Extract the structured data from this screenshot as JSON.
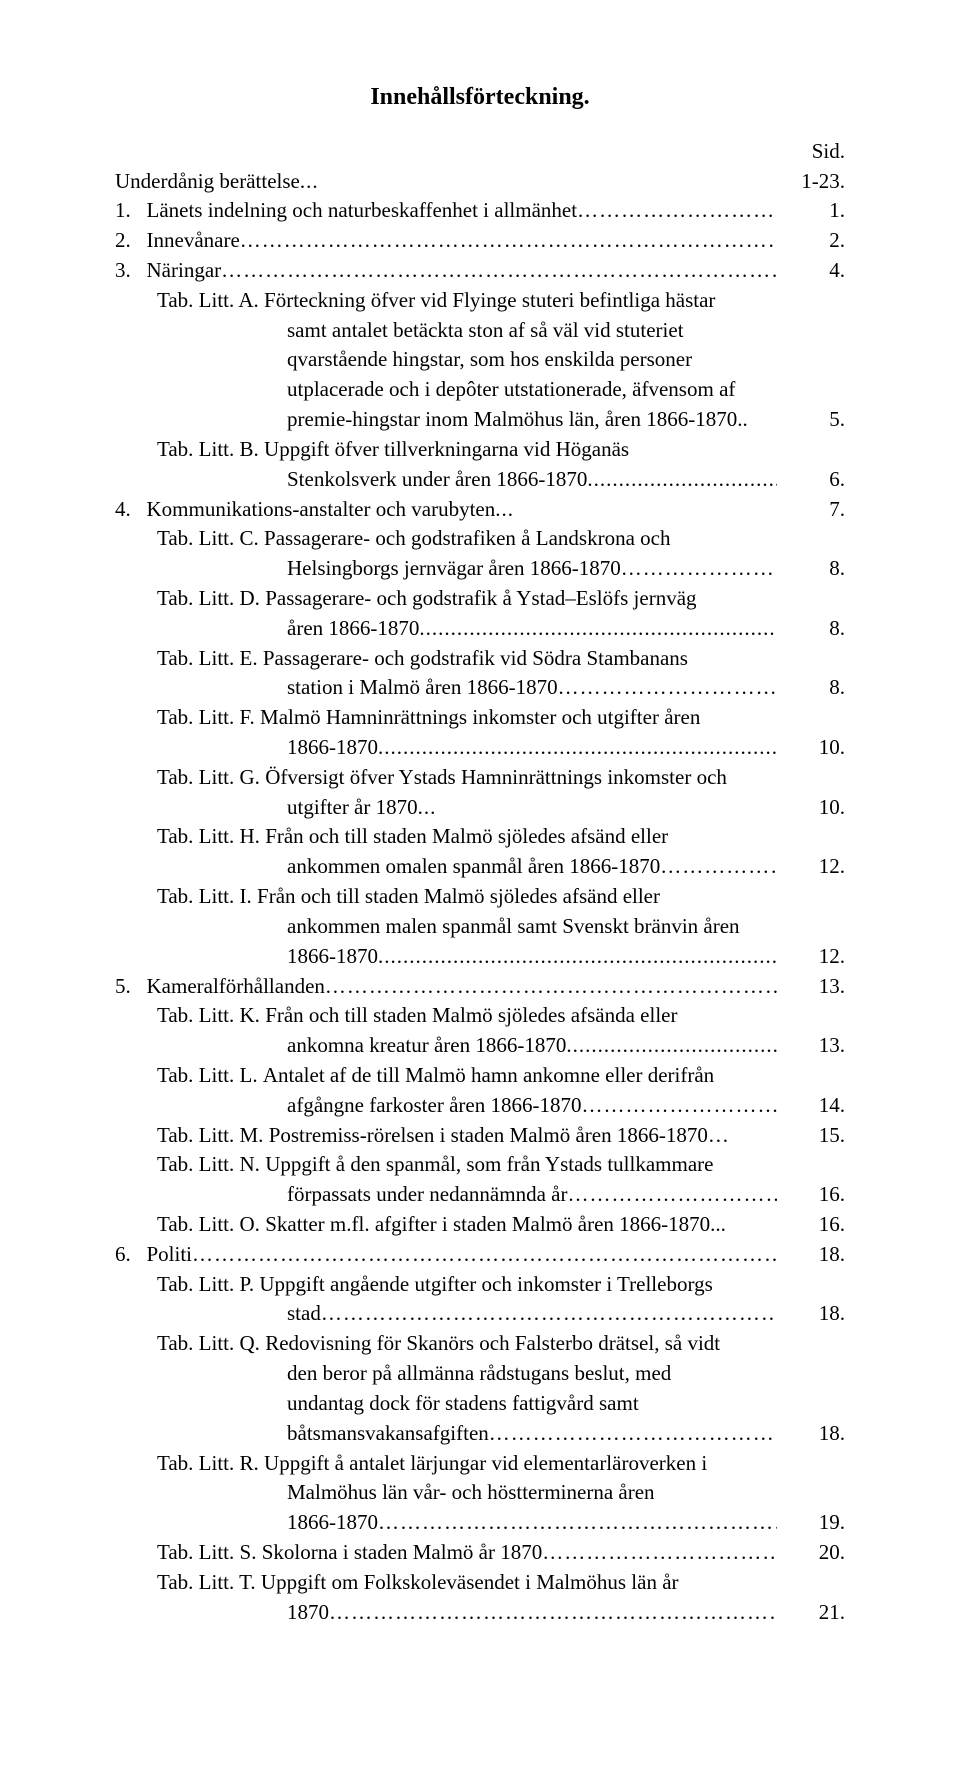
{
  "title": "Innehållsförteckning.",
  "sidLabel": "Sid.",
  "entries": [
    {
      "indent": 0,
      "leadA": "",
      "leadB": "Underdånig berättelse",
      "text": "",
      "leader": "ell",
      "page": "1-23."
    },
    {
      "indent": 0,
      "leadA": "1.",
      "leadB": "",
      "text": "Länets indelning och naturbeskaffenhet i allmänhet",
      "leader": "dots",
      "page": "1."
    },
    {
      "indent": 0,
      "leadA": "2.",
      "leadB": "",
      "text": "Innevånare",
      "leader": "dots",
      "page": "2."
    },
    {
      "indent": 0,
      "leadA": "3.",
      "leadB": "",
      "text": "Näringar",
      "leader": "dots",
      "page": "4."
    },
    {
      "indent": 1,
      "leadA": "Tab. Litt. A.",
      "leadB": "",
      "text": "Förteckning öfver vid Flyinge stuteri befintliga hästar",
      "leader": "",
      "page": ""
    },
    {
      "indent": 2,
      "leadA": "",
      "leadB": "",
      "text": "samt antalet betäckta ston af så väl vid stuteriet",
      "leader": "",
      "page": ""
    },
    {
      "indent": 2,
      "leadA": "",
      "leadB": "",
      "text": "qvarstående hingstar, som hos enskilda personer",
      "leader": "",
      "page": ""
    },
    {
      "indent": 2,
      "leadA": "",
      "leadB": "",
      "text": "utplacerade och i depôter utstationerade, äfvensom af",
      "leader": "",
      "page": ""
    },
    {
      "indent": 2,
      "leadA": "",
      "leadB": "",
      "text": "premie-hingstar inom Malmöhus län, åren 1866-1870..",
      "leader": "",
      "page": "5."
    },
    {
      "indent": 1,
      "leadA": "Tab. Litt. B.",
      "leadB": "",
      "text": "Uppgift öfver tillverkningarna vid Höganäs",
      "leader": "",
      "page": ""
    },
    {
      "indent": 2,
      "leadA": "",
      "leadB": "",
      "text": "Stenkolsverk under åren 1866-1870",
      "leader": "per",
      "page": "6."
    },
    {
      "indent": 0,
      "leadA": "4.",
      "leadB": "",
      "text": "Kommunikations-anstalter och varubyten",
      "leader": "ell",
      "page": "7."
    },
    {
      "indent": 1,
      "leadA": "Tab. Litt. C.",
      "leadB": "",
      "text": "Passagerare- och godstrafiken å Landskrona och",
      "leader": "",
      "page": ""
    },
    {
      "indent": 2,
      "leadA": "",
      "leadB": "",
      "text": "Helsingborgs jernvägar åren 1866-1870",
      "leader": "dots",
      "page": "8."
    },
    {
      "indent": 1,
      "leadA": "Tab. Litt. D.",
      "leadB": "",
      "text": "Passagerare- och godstrafik å Ystad–Eslöfs jernväg",
      "leader": "",
      "page": ""
    },
    {
      "indent": 2,
      "leadA": "",
      "leadB": "",
      "text": "åren 1866-1870",
      "leader": "per",
      "page": "8."
    },
    {
      "indent": 1,
      "leadA": "Tab. Litt. E.",
      "leadB": "",
      "text": "Passagerare- och godstrafik vid Södra Stambanans",
      "leader": "",
      "page": ""
    },
    {
      "indent": 2,
      "leadA": "",
      "leadB": "",
      "text": "station i Malmö åren 1866-1870",
      "leader": "dots",
      "page": "8."
    },
    {
      "indent": 1,
      "leadA": "Tab. Litt. F.",
      "leadB": "",
      "text": "Malmö Hamninrättnings inkomster och utgifter åren",
      "leader": "",
      "page": ""
    },
    {
      "indent": 2,
      "leadA": "",
      "leadB": "",
      "text": "1866-1870",
      "leader": "per",
      "page": "10."
    },
    {
      "indent": 1,
      "leadA": "Tab. Litt. G.",
      "leadB": "",
      "text": "Öfversigt öfver Ystads Hamninrättnings inkomster och",
      "leader": "",
      "page": ""
    },
    {
      "indent": 2,
      "leadA": "",
      "leadB": "",
      "text": "utgifter år 1870",
      "leader": "ell",
      "page": "10."
    },
    {
      "indent": 1,
      "leadA": "Tab. Litt. H.",
      "leadB": "",
      "text": "Från och till staden Malmö sjöledes afsänd eller",
      "leader": "",
      "page": ""
    },
    {
      "indent": 2,
      "leadA": "",
      "leadB": "",
      "text": "ankommen omalen spanmål åren  1866-1870",
      "leader": "dotsshort",
      "page": "12."
    },
    {
      "indent": 1,
      "leadA": "Tab. Litt. I.",
      "leadB": "",
      "text": "Från och till staden Malmö sjöledes afsänd eller",
      "leader": "",
      "page": ""
    },
    {
      "indent": 2,
      "leadA": "",
      "leadB": "",
      "text": "ankommen malen spanmål samt Svenskt bränvin åren",
      "leader": "",
      "page": ""
    },
    {
      "indent": 2,
      "leadA": "",
      "leadB": "",
      "text": "1866-1870",
      "leader": "per",
      "page": "12."
    },
    {
      "indent": 0,
      "leadA": "5.",
      "leadB": "",
      "text": "Kameralförhållanden",
      "leader": "dots",
      "page": "13."
    },
    {
      "indent": 1,
      "leadA": "Tab. Litt. K.",
      "leadB": "",
      "text": "Från och till staden Malmö sjöledes afsända eller",
      "leader": "",
      "page": ""
    },
    {
      "indent": 2,
      "leadA": "",
      "leadB": "",
      "text": "ankomna kreatur åren 1866-1870",
      "leader": "per",
      "page": "13."
    },
    {
      "indent": 1,
      "leadA": "Tab. Litt. L.",
      "leadB": "",
      "text": "Antalet af de till Malmö hamn ankomne eller derifrån",
      "leader": "",
      "page": ""
    },
    {
      "indent": 2,
      "leadA": "",
      "leadB": "",
      "text": "afgångne farkoster åren 1866-1870",
      "leader": "dots",
      "page": "14."
    },
    {
      "indent": 1,
      "leadA": "Tab. Litt. M.",
      "leadB": "",
      "text": "Postremiss-rörelsen i staden Malmö åren 1866-1870…",
      "leader": "",
      "page": "15."
    },
    {
      "indent": 1,
      "leadA": "Tab. Litt. N.",
      "leadB": "",
      "text": "Uppgift å den spanmål, som från Ystads tullkammare",
      "leader": "",
      "page": ""
    },
    {
      "indent": 2,
      "leadA": "",
      "leadB": "",
      "text": "förpassats under nedannämnda år",
      "leader": "dots",
      "page": "16."
    },
    {
      "indent": 1,
      "leadA": "Tab. Litt. O.",
      "leadB": "",
      "text": "Skatter m.fl. afgifter i staden Malmö åren 1866-1870...",
      "leader": "",
      "page": "16."
    },
    {
      "indent": 0,
      "leadA": "6.",
      "leadB": "",
      "text": "Politi",
      "leader": "dots",
      "page": "18."
    },
    {
      "indent": 1,
      "leadA": "Tab. Litt. P.",
      "leadB": "",
      "text": "Uppgift angående utgifter och inkomster i Trelleborgs",
      "leader": "",
      "page": ""
    },
    {
      "indent": 2,
      "leadA": "",
      "leadB": "",
      "text": "stad",
      "leader": "dots",
      "page": "18."
    },
    {
      "indent": 1,
      "leadA": "Tab. Litt. Q.",
      "leadB": "",
      "text": "Redovisning för Skanörs och Falsterbo drätsel, så vidt",
      "leader": "",
      "page": ""
    },
    {
      "indent": 2,
      "leadA": "",
      "leadB": "",
      "text": "den beror på allmänna rådstugans beslut, med",
      "leader": "",
      "page": ""
    },
    {
      "indent": 2,
      "leadA": "",
      "leadB": "",
      "text": "undantag dock för stadens fattigvård samt",
      "leader": "",
      "page": ""
    },
    {
      "indent": 2,
      "leadA": "",
      "leadB": "",
      "text": "båtsmansvakansafgiften",
      "leader": "dots",
      "page": "18."
    },
    {
      "indent": 1,
      "leadA": "Tab. Litt. R.",
      "leadB": "",
      "text": "Uppgift å antalet lärjungar vid elementarläroverken i",
      "leader": "",
      "page": ""
    },
    {
      "indent": 2,
      "leadA": "",
      "leadB": "",
      "text": "Malmöhus län vår- och höstterminerna åren",
      "leader": "",
      "page": ""
    },
    {
      "indent": 2,
      "leadA": "",
      "leadB": "",
      "text": "1866-1870",
      "leader": "dots",
      "page": "19."
    },
    {
      "indent": 1,
      "leadA": "Tab. Litt. S.",
      "leadB": "",
      "text": "Skolorna i staden Malmö år 1870",
      "leader": "dots",
      "page": "20."
    },
    {
      "indent": 1,
      "leadA": "Tab. Litt. T.",
      "leadB": "",
      "text": "Uppgift om Folkskoleväsendet i Malmöhus län år",
      "leader": "",
      "page": ""
    },
    {
      "indent": 2,
      "leadA": "",
      "leadB": "",
      "text": "1870",
      "leader": "dots",
      "page": "21."
    }
  ]
}
